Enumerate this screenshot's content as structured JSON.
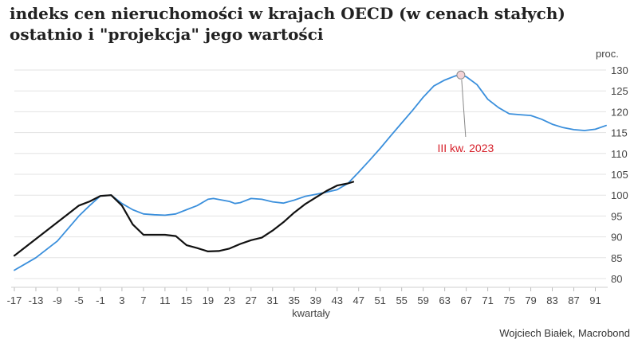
{
  "title_line1": "indeks cen nieruchomości w krajach OECD (w cenach stałych)",
  "title_line2": "ostatnio i \"projekcja\" jego wartości",
  "credit": "Wojciech Białek, Macrobond",
  "chart_data": {
    "type": "line",
    "title": "indeks cen nieruchomości w krajach OECD (w cenach stałych) ostatnio i \"projekcja\" jego wartości",
    "xlabel": "kwartały",
    "ylabel": "proc.",
    "xlim": [
      -17,
      93
    ],
    "ylim": [
      80,
      130
    ],
    "x_ticks": [
      -17,
      -13,
      -9,
      -5,
      -1,
      3,
      7,
      11,
      15,
      19,
      23,
      27,
      31,
      35,
      39,
      43,
      47,
      51,
      55,
      59,
      63,
      67,
      71,
      75,
      79,
      83,
      87,
      91
    ],
    "y_ticks": [
      80,
      85,
      90,
      95,
      100,
      105,
      110,
      115,
      120,
      125,
      130
    ],
    "grid": true,
    "colors": {
      "blue_series": "#3a8fdc",
      "black_series": "#111111",
      "annotation": "#d6202a"
    },
    "series": [
      {
        "color": "#3a8fdc",
        "x": [
          -17,
          -15,
          -13,
          -11,
          -9,
          -7,
          -5,
          -3,
          -1,
          1,
          3,
          5,
          7,
          9,
          11,
          13,
          15,
          17,
          19,
          20,
          23,
          24,
          25,
          27,
          29,
          31,
          33,
          35,
          37,
          39,
          41,
          43,
          45,
          47,
          49,
          51,
          53,
          55,
          57,
          59,
          61,
          63,
          65,
          66,
          67,
          69,
          71,
          73,
          75,
          77,
          79,
          81,
          83,
          85,
          87,
          89,
          91,
          93
        ],
        "y": [
          82,
          83.5,
          85,
          87,
          89,
          92,
          95,
          97.5,
          99.8,
          100,
          98,
          96.5,
          95.5,
          95.3,
          95.2,
          95.5,
          96.5,
          97.5,
          99,
          99.2,
          98.5,
          98,
          98.2,
          99.2,
          99,
          98.4,
          98.1,
          98.8,
          99.7,
          100.2,
          100.7,
          101.3,
          102.8,
          105.5,
          108.3,
          111.2,
          114.3,
          117.3,
          120.3,
          123.5,
          126.2,
          127.6,
          128.6,
          128.8,
          128.4,
          126.5,
          123,
          121,
          119.5,
          119.3,
          119.1,
          118.2,
          117,
          116.2,
          115.7,
          115.5,
          115.8,
          116.7
        ]
      },
      {
        "color": "#111111",
        "x": [
          -17,
          -15,
          -13,
          -11,
          -9,
          -7,
          -5,
          -3,
          -1,
          1,
          3,
          5,
          7,
          9,
          11,
          13,
          15,
          17,
          19,
          21,
          23,
          25,
          27,
          29,
          31,
          33,
          35,
          37,
          39,
          41,
          43,
          45,
          46
        ],
        "y": [
          85.5,
          87.5,
          89.5,
          91.5,
          93.5,
          95.5,
          97.5,
          98.5,
          99.8,
          100,
          97.5,
          93,
          90.5,
          90.5,
          90.5,
          90.2,
          88,
          87.3,
          86.5,
          86.6,
          87.2,
          88.3,
          89.2,
          89.8,
          91.5,
          93.5,
          95.8,
          97.8,
          99.4,
          101,
          102.3,
          102.8,
          103.2
        ]
      }
    ],
    "annotations": [
      {
        "text": "III kw. 2023",
        "x": 66,
        "y": 128.8
      }
    ]
  }
}
